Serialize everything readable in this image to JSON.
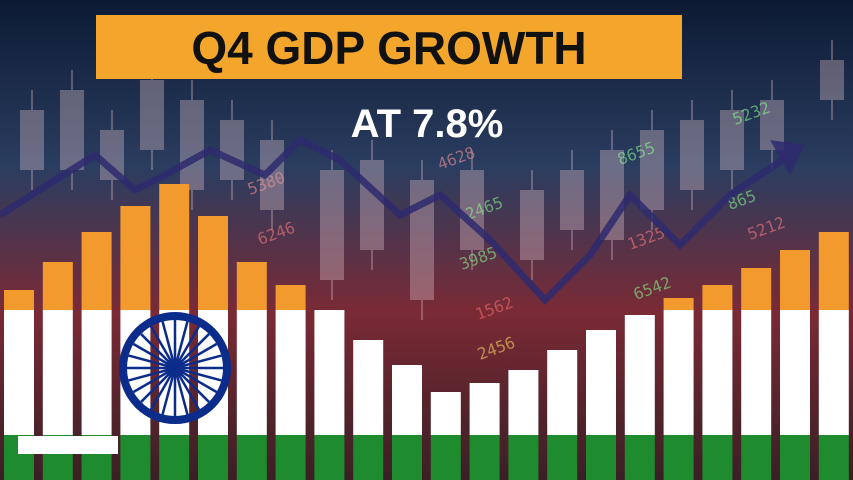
{
  "headline": {
    "title": "Q4 GDP GROWTH",
    "subtitle": "AT 7.8%"
  },
  "background_numbers": [
    "5380",
    "4628",
    "6246",
    "2465",
    "3985",
    "1562",
    "2456",
    "6542",
    "1325",
    "8655",
    "865",
    "5212",
    "5232"
  ]
}
